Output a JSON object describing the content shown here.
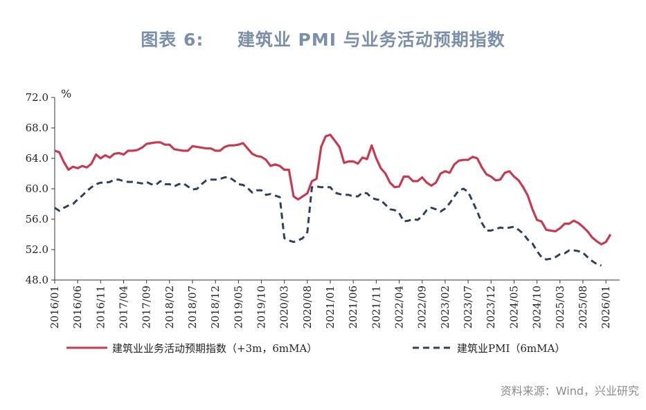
{
  "title": "图表 6:     建筑业 PMI 与业务活动预期指数",
  "source": "资料来源：Wind，兴业研究",
  "chart_data": {
    "type": "line",
    "unit": "%",
    "ylim": [
      48.0,
      72.0
    ],
    "yticks": [
      "72.0",
      "68.0",
      "64.0",
      "60.0",
      "56.0",
      "52.0",
      "48.0"
    ],
    "xlim": [
      "2016/01",
      "2026/04"
    ],
    "xticks": [
      "2016/01",
      "2016/06",
      "2016/11",
      "2017/04",
      "2017/09",
      "2018/02",
      "2018/07",
      "2018/12",
      "2019/05",
      "2019/10",
      "2020/03",
      "2020/08",
      "2021/01",
      "2021/06",
      "2021/11",
      "2022/04",
      "2022/09",
      "2023/02",
      "2023/07",
      "2023/12",
      "2024/05",
      "2024/10",
      "2025/03",
      "2025/08",
      "2026/01"
    ],
    "legend_position": "bottom",
    "grid": false,
    "series": [
      {
        "name": "建筑业业务活动预期指数（+3m，6mMA）",
        "color": "#c8394f",
        "style": "solid",
        "points": [
          [
            "2016/01",
            65.0
          ],
          [
            "2016/02",
            64.8
          ],
          [
            "2016/03",
            63.5
          ],
          [
            "2016/04",
            62.5
          ],
          [
            "2016/05",
            62.9
          ],
          [
            "2016/06",
            62.7
          ],
          [
            "2016/07",
            63.0
          ],
          [
            "2016/08",
            62.8
          ],
          [
            "2016/09",
            63.3
          ],
          [
            "2016/10",
            64.5
          ],
          [
            "2016/11",
            64.0
          ],
          [
            "2016/12",
            64.4
          ],
          [
            "2017/01",
            64.1
          ],
          [
            "2017/02",
            64.6
          ],
          [
            "2017/03",
            64.7
          ],
          [
            "2017/04",
            64.5
          ],
          [
            "2017/05",
            65.0
          ],
          [
            "2017/06",
            65.0
          ],
          [
            "2017/07",
            65.1
          ],
          [
            "2017/08",
            65.4
          ],
          [
            "2017/09",
            65.9
          ],
          [
            "2017/10",
            66.0
          ],
          [
            "2017/11",
            66.1
          ],
          [
            "2017/12",
            66.1
          ],
          [
            "2018/01",
            65.8
          ],
          [
            "2018/02",
            65.8
          ],
          [
            "2018/03",
            65.2
          ],
          [
            "2018/04",
            65.1
          ],
          [
            "2018/05",
            65.0
          ],
          [
            "2018/06",
            65.0
          ],
          [
            "2018/07",
            65.6
          ],
          [
            "2018/08",
            65.5
          ],
          [
            "2018/09",
            65.4
          ],
          [
            "2018/10",
            65.3
          ],
          [
            "2018/11",
            65.3
          ],
          [
            "2018/12",
            65.0
          ],
          [
            "2019/01",
            65.0
          ],
          [
            "2019/02",
            65.5
          ],
          [
            "2019/03",
            65.7
          ],
          [
            "2019/04",
            65.7
          ],
          [
            "2019/05",
            65.8
          ],
          [
            "2019/06",
            66.0
          ],
          [
            "2019/07",
            65.3
          ],
          [
            "2019/08",
            64.6
          ],
          [
            "2019/09",
            64.3
          ],
          [
            "2019/10",
            64.2
          ],
          [
            "2019/11",
            63.8
          ],
          [
            "2019/12",
            63.0
          ],
          [
            "2020/01",
            63.2
          ],
          [
            "2020/02",
            63.0
          ],
          [
            "2020/03",
            62.5
          ],
          [
            "2020/04",
            62.5
          ],
          [
            "2020/05",
            59.0
          ],
          [
            "2020/06",
            58.6
          ],
          [
            "2020/07",
            59.0
          ],
          [
            "2020/08",
            59.4
          ],
          [
            "2020/09",
            61.0
          ],
          [
            "2020/10",
            61.3
          ],
          [
            "2020/11",
            65.5
          ],
          [
            "2020/12",
            66.9
          ],
          [
            "2021/01",
            67.1
          ],
          [
            "2021/02",
            66.3
          ],
          [
            "2021/03",
            65.5
          ],
          [
            "2021/04",
            63.4
          ],
          [
            "2021/05",
            63.6
          ],
          [
            "2021/06",
            63.6
          ],
          [
            "2021/07",
            63.3
          ],
          [
            "2021/08",
            64.1
          ],
          [
            "2021/09",
            63.9
          ],
          [
            "2021/10",
            65.7
          ],
          [
            "2021/11",
            64.0
          ],
          [
            "2021/12",
            62.7
          ],
          [
            "2022/01",
            62.0
          ],
          [
            "2022/02",
            60.8
          ],
          [
            "2022/03",
            60.2
          ],
          [
            "2022/04",
            60.3
          ],
          [
            "2022/05",
            61.6
          ],
          [
            "2022/06",
            61.6
          ],
          [
            "2022/07",
            61.0
          ],
          [
            "2022/08",
            61.0
          ],
          [
            "2022/09",
            61.5
          ],
          [
            "2022/10",
            60.8
          ],
          [
            "2022/11",
            60.4
          ],
          [
            "2022/12",
            60.8
          ],
          [
            "2023/01",
            62.0
          ],
          [
            "2023/02",
            62.3
          ],
          [
            "2023/03",
            62.1
          ],
          [
            "2023/04",
            63.2
          ],
          [
            "2023/05",
            63.7
          ],
          [
            "2023/06",
            63.8
          ],
          [
            "2023/07",
            63.8
          ],
          [
            "2023/08",
            64.2
          ],
          [
            "2023/09",
            64.0
          ],
          [
            "2023/10",
            62.8
          ],
          [
            "2023/11",
            61.9
          ],
          [
            "2023/12",
            61.6
          ],
          [
            "2024/01",
            61.1
          ],
          [
            "2024/02",
            61.2
          ],
          [
            "2024/03",
            62.1
          ],
          [
            "2024/04",
            62.3
          ],
          [
            "2024/05",
            61.6
          ],
          [
            "2024/06",
            61.1
          ],
          [
            "2024/07",
            60.2
          ],
          [
            "2024/08",
            59.1
          ],
          [
            "2024/09",
            57.3
          ],
          [
            "2024/10",
            55.9
          ],
          [
            "2024/11",
            55.7
          ],
          [
            "2024/12",
            54.6
          ],
          [
            "2025/01",
            54.5
          ],
          [
            "2025/02",
            54.4
          ],
          [
            "2025/03",
            54.8
          ],
          [
            "2025/04",
            55.4
          ],
          [
            "2025/05",
            55.4
          ],
          [
            "2025/06",
            55.8
          ],
          [
            "2025/07",
            55.5
          ],
          [
            "2025/08",
            55.0
          ],
          [
            "2025/09",
            54.4
          ],
          [
            "2025/10",
            53.6
          ],
          [
            "2025/11",
            53.1
          ],
          [
            "2025/12",
            52.7
          ],
          [
            "2026/01",
            53.0
          ],
          [
            "2026/02",
            54.0
          ]
        ]
      },
      {
        "name": "建筑业PMI（6mMA）",
        "color": "#2f3f5c",
        "style": "dashed",
        "points": [
          [
            "2016/01",
            57.5
          ],
          [
            "2016/02",
            57.1
          ],
          [
            "2016/03",
            57.5
          ],
          [
            "2016/04",
            57.8
          ],
          [
            "2016/05",
            58.0
          ],
          [
            "2016/06",
            58.6
          ],
          [
            "2016/07",
            59.1
          ],
          [
            "2016/08",
            59.7
          ],
          [
            "2016/09",
            60.2
          ],
          [
            "2016/10",
            60.6
          ],
          [
            "2016/11",
            60.8
          ],
          [
            "2016/12",
            60.8
          ],
          [
            "2017/01",
            60.9
          ],
          [
            "2017/02",
            61.2
          ],
          [
            "2017/03",
            61.2
          ],
          [
            "2017/04",
            61.0
          ],
          [
            "2017/05",
            60.9
          ],
          [
            "2017/06",
            60.9
          ],
          [
            "2017/07",
            60.8
          ],
          [
            "2017/08",
            60.7
          ],
          [
            "2017/09",
            60.9
          ],
          [
            "2017/10",
            60.6
          ],
          [
            "2017/11",
            60.5
          ],
          [
            "2017/12",
            61.0
          ],
          [
            "2018/01",
            60.6
          ],
          [
            "2018/02",
            60.6
          ],
          [
            "2018/03",
            60.3
          ],
          [
            "2018/04",
            60.6
          ],
          [
            "2018/05",
            60.7
          ],
          [
            "2018/06",
            60.3
          ],
          [
            "2018/07",
            59.9
          ],
          [
            "2018/08",
            60.0
          ],
          [
            "2018/09",
            60.6
          ],
          [
            "2018/10",
            61.1
          ],
          [
            "2018/11",
            61.2
          ],
          [
            "2018/12",
            61.2
          ],
          [
            "2019/01",
            61.3
          ],
          [
            "2019/02",
            61.5
          ],
          [
            "2019/03",
            61.5
          ],
          [
            "2019/04",
            61.1
          ],
          [
            "2019/05",
            60.6
          ],
          [
            "2019/06",
            60.5
          ],
          [
            "2019/07",
            60.1
          ],
          [
            "2019/08",
            59.5
          ],
          [
            "2019/09",
            59.8
          ],
          [
            "2019/10",
            59.8
          ],
          [
            "2019/11",
            59.2
          ],
          [
            "2019/12",
            59.3
          ],
          [
            "2020/01",
            59.1
          ],
          [
            "2020/02",
            58.9
          ],
          [
            "2020/03",
            53.5
          ],
          [
            "2020/04",
            53.2
          ],
          [
            "2020/05",
            53.0
          ],
          [
            "2020/06",
            53.2
          ],
          [
            "2020/07",
            53.5
          ],
          [
            "2020/08",
            54.3
          ],
          [
            "2020/09",
            60.2
          ],
          [
            "2020/10",
            60.3
          ],
          [
            "2020/11",
            60.2
          ],
          [
            "2020/12",
            60.2
          ],
          [
            "2021/01",
            60.2
          ],
          [
            "2021/02",
            59.5
          ],
          [
            "2021/03",
            59.3
          ],
          [
            "2021/04",
            59.2
          ],
          [
            "2021/05",
            59.2
          ],
          [
            "2021/06",
            59.0
          ],
          [
            "2021/07",
            59.0
          ],
          [
            "2021/08",
            59.5
          ],
          [
            "2021/09",
            59.4
          ],
          [
            "2021/10",
            58.8
          ],
          [
            "2021/11",
            58.6
          ],
          [
            "2021/12",
            58.5
          ],
          [
            "2022/01",
            57.9
          ],
          [
            "2022/02",
            57.3
          ],
          [
            "2022/03",
            57.2
          ],
          [
            "2022/04",
            56.8
          ],
          [
            "2022/05",
            55.7
          ],
          [
            "2022/06",
            55.8
          ],
          [
            "2022/07",
            56.0
          ],
          [
            "2022/08",
            55.9
          ],
          [
            "2022/09",
            56.4
          ],
          [
            "2022/10",
            57.2
          ],
          [
            "2022/11",
            57.5
          ],
          [
            "2022/12",
            57.3
          ],
          [
            "2023/01",
            57.0
          ],
          [
            "2023/02",
            57.4
          ],
          [
            "2023/03",
            58.1
          ],
          [
            "2023/04",
            59.0
          ],
          [
            "2023/05",
            59.8
          ],
          [
            "2023/06",
            60.0
          ],
          [
            "2023/07",
            59.6
          ],
          [
            "2023/08",
            58.3
          ],
          [
            "2023/09",
            57.0
          ],
          [
            "2023/10",
            55.5
          ],
          [
            "2023/11",
            54.5
          ],
          [
            "2023/12",
            54.5
          ],
          [
            "2024/01",
            54.7
          ],
          [
            "2024/02",
            54.9
          ],
          [
            "2024/03",
            54.8
          ],
          [
            "2024/04",
            54.9
          ],
          [
            "2024/05",
            55.0
          ],
          [
            "2024/06",
            54.6
          ],
          [
            "2024/07",
            54.1
          ],
          [
            "2024/08",
            53.3
          ],
          [
            "2024/09",
            52.8
          ],
          [
            "2024/10",
            51.8
          ],
          [
            "2024/11",
            51.0
          ],
          [
            "2024/12",
            50.7
          ],
          [
            "2025/01",
            50.8
          ],
          [
            "2025/02",
            51.0
          ],
          [
            "2025/03",
            51.4
          ],
          [
            "2025/04",
            51.5
          ],
          [
            "2025/05",
            51.9
          ],
          [
            "2025/06",
            51.9
          ],
          [
            "2025/07",
            51.8
          ],
          [
            "2025/08",
            51.6
          ],
          [
            "2025/09",
            51.0
          ],
          [
            "2025/10",
            50.5
          ],
          [
            "2025/11",
            50.1
          ],
          [
            "2025/12",
            49.9
          ]
        ]
      }
    ]
  }
}
